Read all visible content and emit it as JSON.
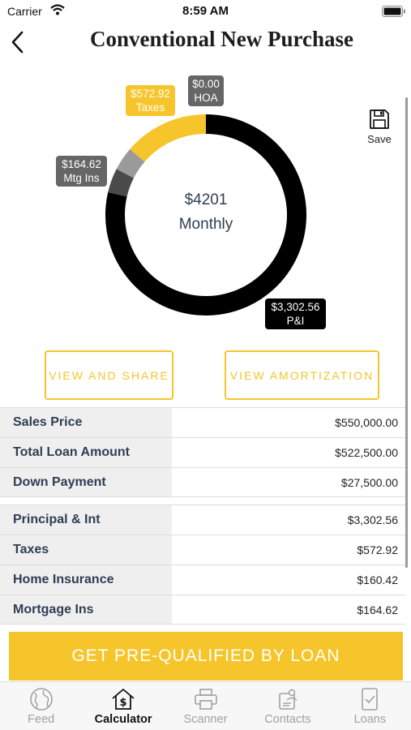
{
  "status": {
    "carrier": "Carrier",
    "time": "8:59 AM"
  },
  "header": {
    "title": "Conventional New Purchase",
    "save_label": "Save"
  },
  "chart_data": {
    "type": "pie",
    "center_value": "$4201",
    "center_label": "Monthly",
    "slices": [
      {
        "label": "P&I",
        "value": 3302.56,
        "display": "$3,302.56",
        "color": "#000000"
      },
      {
        "label": "Mtg Ins",
        "value": 164.62,
        "display": "$164.62",
        "color": "#4a4a4a"
      },
      {
        "label": "Home Insurance",
        "value": 160.42,
        "display": "",
        "color": "#9a9a9a"
      },
      {
        "label": "Taxes",
        "value": 572.92,
        "display": "$572.92",
        "color": "#f5c52b"
      },
      {
        "label": "HOA",
        "value": 0.0,
        "display": "$0.00",
        "color": "#666666"
      }
    ]
  },
  "callouts": {
    "hoa": {
      "amount": "$0.00",
      "label": "HOA"
    },
    "taxes": {
      "amount": "$572.92",
      "label": "Taxes"
    },
    "mtg": {
      "amount": "$164.62",
      "label": "Mtg Ins"
    },
    "pi": {
      "amount": "$3,302.56",
      "label": "P&I"
    }
  },
  "actions": {
    "share": "VIEW AND SHARE",
    "amortization": "VIEW AMORTIZATION"
  },
  "loan_table": [
    {
      "label": "Sales Price",
      "value": "$550,000.00"
    },
    {
      "label": "Total Loan Amount",
      "value": "$522,500.00"
    },
    {
      "label": "Down Payment",
      "value": "$27,500.00"
    }
  ],
  "payment_table": [
    {
      "label": "Principal & Int",
      "value": "$3,302.56"
    },
    {
      "label": "Taxes",
      "value": "$572.92"
    },
    {
      "label": "Home Insurance",
      "value": "$160.42"
    },
    {
      "label": "Mortgage Ins",
      "value": "$164.62"
    }
  ],
  "cta": {
    "label": "GET PRE-QUALIFIED BY LOAN"
  },
  "tabs": [
    {
      "label": "Feed",
      "icon": "globe-icon"
    },
    {
      "label": "Calculator",
      "icon": "calculator-house-icon",
      "active": true
    },
    {
      "label": "Scanner",
      "icon": "printer-icon"
    },
    {
      "label": "Contacts",
      "icon": "contacts-icon"
    },
    {
      "label": "Loans",
      "icon": "document-check-icon"
    }
  ],
  "colors": {
    "accent": "#f5c52b",
    "text": "#2f3e52"
  }
}
